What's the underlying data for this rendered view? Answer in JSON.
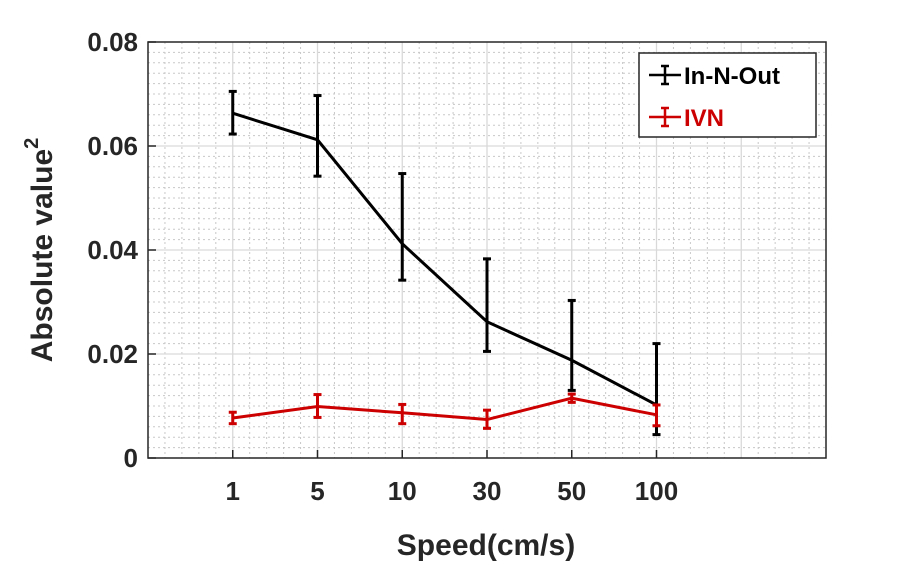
{
  "chart_data": {
    "type": "line",
    "title": "",
    "xlabel": "Speed(cm/s)",
    "ylabel": "Absolute value",
    "ylabel_superscript": "2",
    "categories": [
      "1",
      "5",
      "10",
      "30",
      "50",
      "100"
    ],
    "ylim": [
      0,
      0.08
    ],
    "yticks": [
      0,
      0.02,
      0.04,
      0.06,
      0.08
    ],
    "ytick_labels": [
      "0",
      "0.02",
      "0.04",
      "0.06",
      "0.08"
    ],
    "grid": true,
    "minor_grid": true,
    "legend_position": "top-right",
    "error_bars": true,
    "series": [
      {
        "name": "In-N-Out",
        "color": "#000000",
        "values": [
          0.0663,
          0.0612,
          0.0412,
          0.0262,
          0.0188,
          0.0102
        ],
        "err_low": [
          0.0623,
          0.0542,
          0.0342,
          0.0205,
          0.013,
          0.0045
        ],
        "err_high": [
          0.0705,
          0.0697,
          0.0547,
          0.0383,
          0.0303,
          0.022
        ]
      },
      {
        "name": "IVN",
        "color": "#cc0000",
        "values": [
          0.0077,
          0.0099,
          0.0087,
          0.0074,
          0.0115,
          0.0083
        ],
        "err_low": [
          0.0066,
          0.0078,
          0.0066,
          0.0057,
          0.0107,
          0.0062
        ],
        "err_high": [
          0.0088,
          0.0122,
          0.0103,
          0.0092,
          0.0123,
          0.0102
        ]
      }
    ]
  }
}
